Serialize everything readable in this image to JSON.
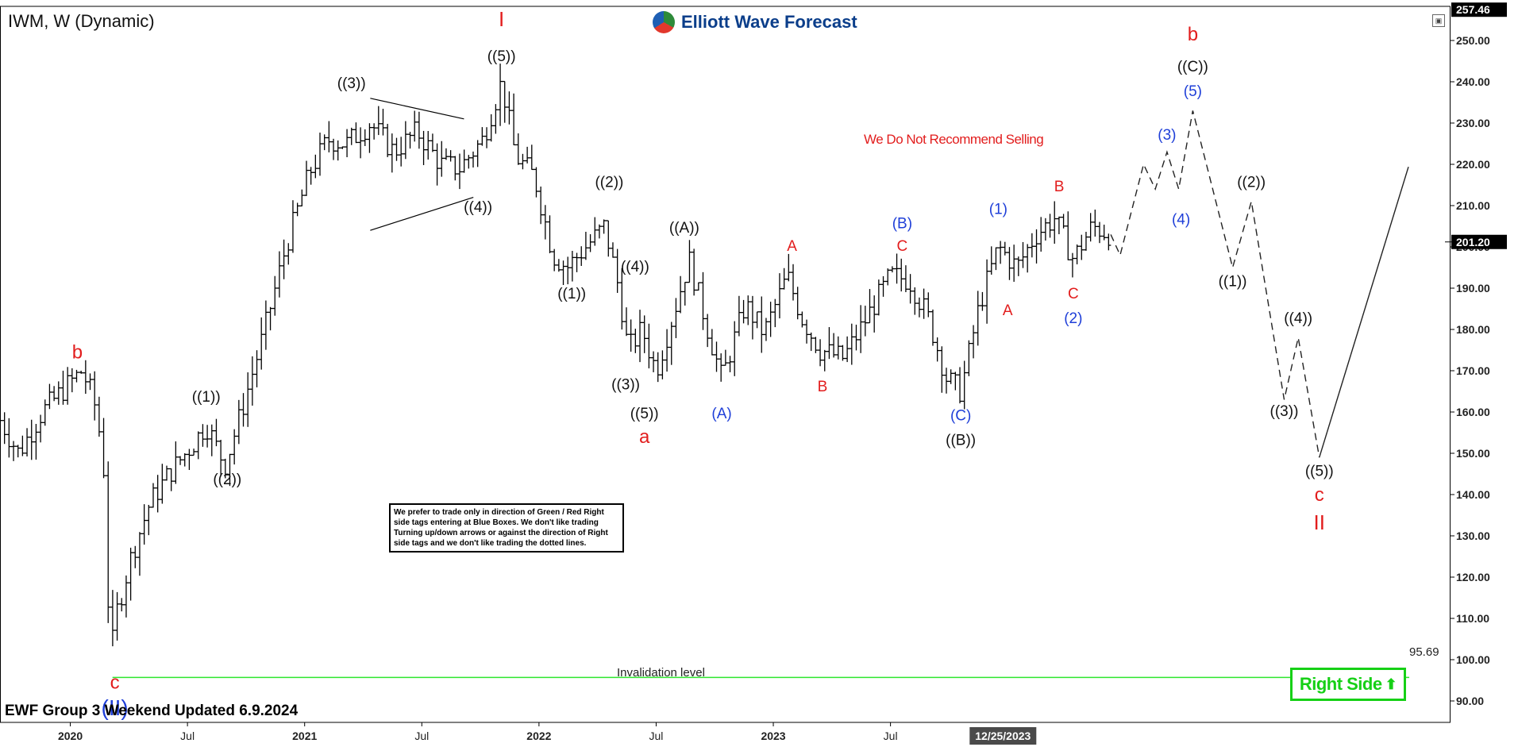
{
  "header": {
    "symbol": "IWM, W (Dynamic)",
    "brand": "Elliott Wave Forecast"
  },
  "warning_text": "We Do Not Recommend Selling",
  "note_text": "We prefer to trade only in direction of Green / Red Right side tags entering at Blue Boxes. We don't like trading Turning up/down arrows or against the direction of Right side tags and we don't like trading the dotted lines.",
  "invalidation": {
    "label": "Invalidation level",
    "value": "95.69"
  },
  "footer": "EWF Group 3 Weekend Updated 6.9.2024",
  "right_side": {
    "label": "Right Side",
    "arrow": "⬆"
  },
  "colors": {
    "red": "#e21d1d",
    "blue": "#1f3fd8",
    "black": "#111111",
    "green": "#16d016",
    "price_tag": "#000000"
  },
  "chart_data": {
    "type": "ohlc",
    "y_axis": {
      "ylim": [
        80,
        260
      ],
      "ticks": [
        90,
        100,
        110,
        120,
        130,
        140,
        150,
        160,
        170,
        180,
        190,
        200,
        210,
        220,
        230,
        240,
        250
      ],
      "tick_labels": [
        "90.00",
        "100.00",
        "110.00",
        "120.00",
        "130.00",
        "140.00",
        "150.00",
        "160.00",
        "170.00",
        "180.00",
        "190.00",
        "200.00",
        "210.00",
        "220.00",
        "230.00",
        "240.00",
        "250.00"
      ],
      "top_tag": "257.46",
      "top_tag_value": 257.46,
      "last_price": "201.20",
      "last_price_value": 201.2
    },
    "x_axis": {
      "xlim": [
        2019.7,
        2025.4
      ],
      "ticks": [
        {
          "t": 2020.0,
          "label": "2020",
          "bold": true
        },
        {
          "t": 2020.5,
          "label": "Jul",
          "bold": false
        },
        {
          "t": 2021.0,
          "label": "2021",
          "bold": true
        },
        {
          "t": 2021.5,
          "label": "Jul",
          "bold": false
        },
        {
          "t": 2022.0,
          "label": "2022",
          "bold": true
        },
        {
          "t": 2022.5,
          "label": "Jul",
          "bold": false
        },
        {
          "t": 2023.0,
          "label": "2023",
          "bold": true
        },
        {
          "t": 2023.5,
          "label": "Jul",
          "bold": false
        }
      ],
      "cursor_tag": {
        "t": 2023.98,
        "label": "12/25/2023"
      }
    },
    "price_path": [
      [
        2019.7,
        158
      ],
      [
        2019.78,
        150
      ],
      [
        2019.88,
        160
      ],
      [
        2019.98,
        166
      ],
      [
        2020.05,
        170
      ],
      [
        2020.1,
        163
      ],
      [
        2020.14,
        150
      ],
      [
        2020.17,
        100
      ],
      [
        2020.2,
        112
      ],
      [
        2020.26,
        125
      ],
      [
        2020.34,
        138
      ],
      [
        2020.42,
        145
      ],
      [
        2020.52,
        152
      ],
      [
        2020.58,
        157
      ],
      [
        2020.66,
        147
      ],
      [
        2020.74,
        162
      ],
      [
        2020.82,
        178
      ],
      [
        2020.92,
        200
      ],
      [
        2021.02,
        218
      ],
      [
        2021.1,
        226
      ],
      [
        2021.18,
        225
      ],
      [
        2021.28,
        230
      ],
      [
        2021.38,
        223
      ],
      [
        2021.48,
        228
      ],
      [
        2021.58,
        220
      ],
      [
        2021.66,
        219
      ],
      [
        2021.76,
        226
      ],
      [
        2021.84,
        240
      ],
      [
        2021.9,
        222
      ],
      [
        2021.98,
        217
      ],
      [
        2022.06,
        198
      ],
      [
        2022.12,
        195
      ],
      [
        2022.2,
        200
      ],
      [
        2022.28,
        205
      ],
      [
        2022.34,
        190
      ],
      [
        2022.38,
        175
      ],
      [
        2022.44,
        180
      ],
      [
        2022.5,
        170
      ],
      [
        2022.58,
        185
      ],
      [
        2022.64,
        197
      ],
      [
        2022.72,
        180
      ],
      [
        2022.78,
        168
      ],
      [
        2022.88,
        186
      ],
      [
        2022.96,
        179
      ],
      [
        2023.06,
        193
      ],
      [
        2023.12,
        183
      ],
      [
        2023.2,
        175
      ],
      [
        2023.3,
        173
      ],
      [
        2023.4,
        183
      ],
      [
        2023.5,
        193
      ],
      [
        2023.58,
        192
      ],
      [
        2023.66,
        183
      ],
      [
        2023.74,
        168
      ],
      [
        2023.8,
        165
      ],
      [
        2023.88,
        186
      ],
      [
        2023.96,
        200
      ],
      [
        2024.04,
        195
      ],
      [
        2024.12,
        203
      ],
      [
        2024.2,
        207
      ],
      [
        2024.28,
        197
      ],
      [
        2024.36,
        205
      ],
      [
        2024.44,
        203
      ]
    ],
    "bar_spread": 5,
    "projection": [
      {
        "t": 2024.44,
        "v": 203
      },
      {
        "t": 2024.48,
        "v": 198
      },
      {
        "t": 2024.58,
        "v": 220
      },
      {
        "t": 2024.63,
        "v": 214
      },
      {
        "t": 2024.68,
        "v": 223
      },
      {
        "t": 2024.73,
        "v": 214
      },
      {
        "t": 2024.79,
        "v": 233
      },
      {
        "t": 2024.96,
        "v": 195
      },
      {
        "t": 2025.04,
        "v": 211
      },
      {
        "t": 2025.18,
        "v": 163
      },
      {
        "t": 2025.24,
        "v": 178
      },
      {
        "t": 2025.33,
        "v": 149
      }
    ],
    "projection_final": {
      "t": 2025.56,
      "v": 204
    },
    "triangle_lines": [
      [
        {
          "t": 2021.28,
          "v": 236
        },
        {
          "t": 2021.68,
          "v": 231
        }
      ],
      [
        {
          "t": 2021.28,
          "v": 204
        },
        {
          "t": 2021.72,
          "v": 212
        }
      ]
    ],
    "invalidation_line": {
      "from_t": 2020.18,
      "to_t": 2025.6,
      "v": 95.69
    },
    "wave_labels": [
      {
        "text": "b",
        "t": 2020.03,
        "v": 173,
        "color": "red",
        "size": 24
      },
      {
        "text": "c",
        "t": 2020.19,
        "v": 93,
        "color": "red",
        "size": 24
      },
      {
        "text": "(II)",
        "t": 2020.19,
        "v": 86.5,
        "color": "blue",
        "size": 28
      },
      {
        "text": "((1))",
        "t": 2020.58,
        "v": 162.5,
        "color": "black",
        "size": 19
      },
      {
        "text": "((2))",
        "t": 2020.67,
        "v": 142.5,
        "color": "black",
        "size": 19
      },
      {
        "text": "((3))",
        "t": 2021.2,
        "v": 238.5,
        "color": "black",
        "size": 19
      },
      {
        "text": "I",
        "t": 2021.84,
        "v": 253.5,
        "color": "red",
        "size": 26
      },
      {
        "text": "((5))",
        "t": 2021.84,
        "v": 245,
        "color": "black",
        "size": 19
      },
      {
        "text": "((4))",
        "t": 2021.74,
        "v": 208.5,
        "color": "black",
        "size": 19
      },
      {
        "text": "((1))",
        "t": 2022.14,
        "v": 187.5,
        "color": "black",
        "size": 19
      },
      {
        "text": "((2))",
        "t": 2022.3,
        "v": 214.5,
        "color": "black",
        "size": 19
      },
      {
        "text": "((4))",
        "t": 2022.41,
        "v": 194,
        "color": "black",
        "size": 19
      },
      {
        "text": "((3))",
        "t": 2022.37,
        "v": 165.5,
        "color": "black",
        "size": 19
      },
      {
        "text": "((5))",
        "t": 2022.45,
        "v": 158.5,
        "color": "black",
        "size": 19
      },
      {
        "text": "a",
        "t": 2022.45,
        "v": 152.5,
        "color": "red",
        "size": 24
      },
      {
        "text": "((A))",
        "t": 2022.62,
        "v": 203.5,
        "color": "black",
        "size": 19
      },
      {
        "text": "(A)",
        "t": 2022.78,
        "v": 158.5,
        "color": "blue",
        "size": 19
      },
      {
        "text": "A",
        "t": 2023.08,
        "v": 199,
        "color": "red",
        "size": 19
      },
      {
        "text": "B",
        "t": 2023.21,
        "v": 165,
        "color": "red",
        "size": 19
      },
      {
        "text": "(B)",
        "t": 2023.55,
        "v": 204.5,
        "color": "blue",
        "size": 19
      },
      {
        "text": "C",
        "t": 2023.55,
        "v": 199,
        "color": "red",
        "size": 19
      },
      {
        "text": "(C)",
        "t": 2023.8,
        "v": 158,
        "color": "blue",
        "size": 19
      },
      {
        "text": "((B))",
        "t": 2023.8,
        "v": 152,
        "color": "black",
        "size": 19
      },
      {
        "text": "(1)",
        "t": 2023.96,
        "v": 208,
        "color": "blue",
        "size": 19
      },
      {
        "text": "A",
        "t": 2024.0,
        "v": 183.5,
        "color": "red",
        "size": 19
      },
      {
        "text": "B",
        "t": 2024.22,
        "v": 213.5,
        "color": "red",
        "size": 19
      },
      {
        "text": "C",
        "t": 2024.28,
        "v": 187.5,
        "color": "red",
        "size": 19
      },
      {
        "text": "(2)",
        "t": 2024.28,
        "v": 181.5,
        "color": "blue",
        "size": 19
      },
      {
        "text": "(3)",
        "t": 2024.68,
        "v": 226,
        "color": "blue",
        "size": 19
      },
      {
        "text": "(4)",
        "t": 2024.74,
        "v": 205.5,
        "color": "blue",
        "size": 19
      },
      {
        "text": "b",
        "t": 2024.79,
        "v": 250,
        "color": "red",
        "size": 24
      },
      {
        "text": "((C))",
        "t": 2024.79,
        "v": 242.5,
        "color": "black",
        "size": 19
      },
      {
        "text": "(5)",
        "t": 2024.79,
        "v": 236.5,
        "color": "blue",
        "size": 19
      },
      {
        "text": "((2))",
        "t": 2025.04,
        "v": 214.5,
        "color": "black",
        "size": 19
      },
      {
        "text": "((1))",
        "t": 2024.96,
        "v": 190.5,
        "color": "black",
        "size": 19
      },
      {
        "text": "((4))",
        "t": 2025.24,
        "v": 181.5,
        "color": "black",
        "size": 19
      },
      {
        "text": "((3))",
        "t": 2025.18,
        "v": 159,
        "color": "black",
        "size": 19
      },
      {
        "text": "((5))",
        "t": 2025.33,
        "v": 144.5,
        "color": "black",
        "size": 19
      },
      {
        "text": "c",
        "t": 2025.33,
        "v": 138.5,
        "color": "red",
        "size": 24
      },
      {
        "text": "II",
        "t": 2025.33,
        "v": 131.5,
        "color": "red",
        "size": 26
      }
    ]
  }
}
